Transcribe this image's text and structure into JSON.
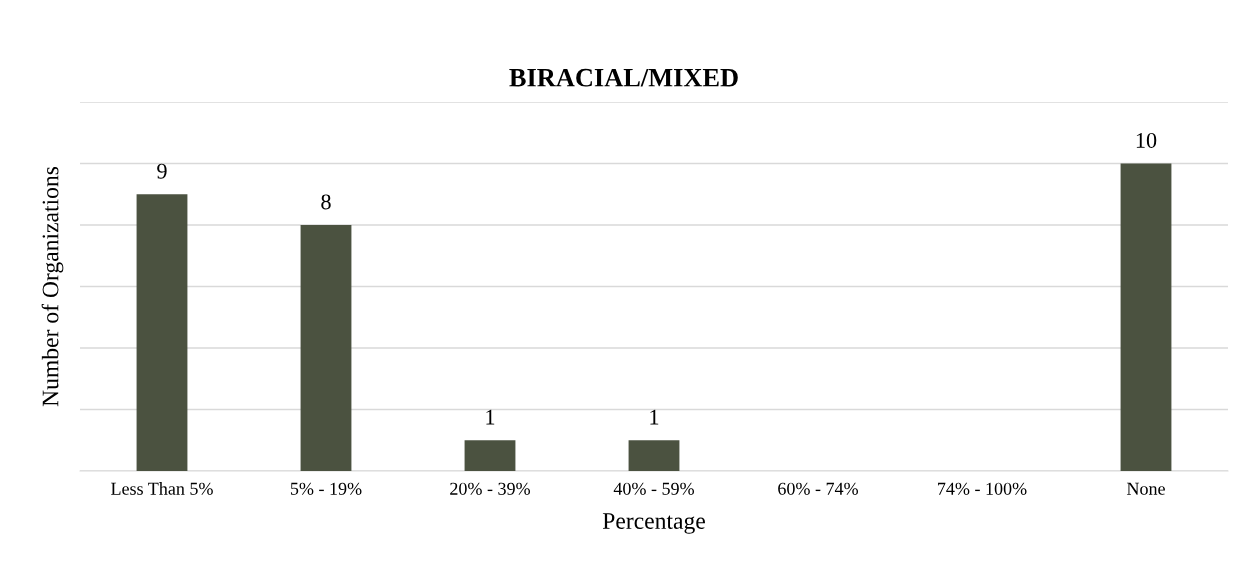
{
  "chart_data": {
    "type": "bar",
    "title": "BIRACIAL/MIXED",
    "xlabel": "Percentage",
    "ylabel": "Number of Organizations",
    "categories": [
      "Less Than 5%",
      "5% - 19%",
      "20% - 39%",
      "40% - 59%",
      "60% - 74%",
      "74% - 100%",
      "None"
    ],
    "values": [
      9,
      8,
      1,
      1,
      0,
      0,
      10
    ],
    "value_labels": [
      "9",
      "8",
      "1",
      "1",
      null,
      null,
      "10"
    ],
    "color": "#4b5240",
    "ylim": [
      0,
      12
    ],
    "yticks": [
      {
        "value": 0,
        "label": null
      },
      {
        "value": 2,
        "label": null
      },
      {
        "value": 4,
        "label": null
      },
      {
        "value": 6,
        "label": null
      },
      {
        "value": 8,
        "label": null
      },
      {
        "value": 10,
        "label": null
      },
      {
        "value": 12,
        "label": null
      }
    ],
    "tick_labels": "x",
    "grid": "y"
  }
}
